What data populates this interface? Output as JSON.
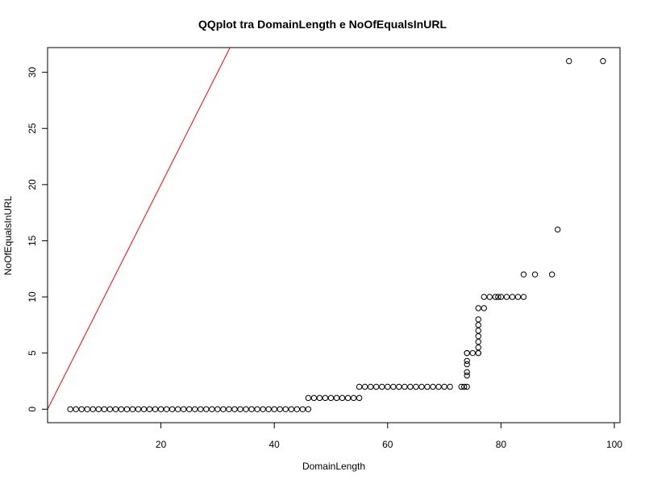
{
  "chart_data": {
    "type": "scatter",
    "title": "QQplot tra DomainLength e NoOfEqualsInURL",
    "xlabel": "DomainLength",
    "ylabel": "NoOfEqualsInURL",
    "xlim": [
      0,
      101
    ],
    "ylim": [
      -1.2,
      32.2
    ],
    "xticks": [
      "20",
      "40",
      "60",
      "80",
      "100"
    ],
    "yticks": [
      "0",
      "5",
      "10",
      "15",
      "20",
      "25",
      "30"
    ],
    "grid": false,
    "reference_line": {
      "slope": 1,
      "intercept": 0,
      "color": "#ff0000"
    },
    "point_color": "#000000",
    "series": [
      {
        "x": [
          4,
          5,
          6,
          7,
          8,
          9,
          10,
          11,
          12,
          13,
          14,
          15,
          16,
          17,
          18,
          19,
          20,
          21,
          22,
          23,
          24,
          25,
          26,
          27,
          28,
          29,
          30,
          31,
          32,
          33,
          34,
          35,
          36,
          37,
          38,
          39,
          40,
          41,
          42,
          43,
          44,
          45,
          46,
          46,
          47,
          48,
          49,
          50,
          51,
          52,
          53,
          54,
          55,
          55,
          56,
          57,
          58,
          59,
          60,
          61,
          62,
          63,
          64,
          65,
          66,
          67,
          68,
          69,
          70,
          71,
          73,
          73.5,
          74,
          74,
          74,
          74,
          74,
          74,
          74,
          75,
          76,
          76,
          76,
          76,
          76,
          76,
          76,
          76,
          76,
          77,
          77,
          78,
          79,
          79.5,
          80,
          81,
          82,
          83,
          84,
          84,
          86,
          89,
          90,
          92,
          98
        ],
        "y": [
          0,
          0,
          0,
          0,
          0,
          0,
          0,
          0,
          0,
          0,
          0,
          0,
          0,
          0,
          0,
          0,
          0,
          0,
          0,
          0,
          0,
          0,
          0,
          0,
          0,
          0,
          0,
          0,
          0,
          0,
          0,
          0,
          0,
          0,
          0,
          0,
          0,
          0,
          0,
          0,
          0,
          0,
          0,
          1,
          1,
          1,
          1,
          1,
          1,
          1,
          1,
          1,
          1,
          2,
          2,
          2,
          2,
          2,
          2,
          2,
          2,
          2,
          2,
          2,
          2,
          2,
          2,
          2,
          2,
          2,
          2,
          2,
          2,
          3,
          3.3,
          4,
          4.3,
          5,
          5,
          5,
          5,
          5,
          5.5,
          6,
          6.5,
          7,
          7.5,
          8,
          9,
          9,
          10,
          10,
          10,
          10,
          10,
          10,
          10,
          10,
          10,
          12,
          12,
          12,
          16,
          31,
          31
        ]
      }
    ]
  }
}
